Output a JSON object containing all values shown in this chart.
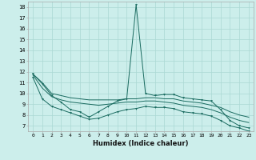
{
  "xlabel": "Humidex (Indice chaleur)",
  "xlim": [
    -0.5,
    23.5
  ],
  "ylim": [
    6.5,
    18.5
  ],
  "yticks": [
    7,
    8,
    9,
    10,
    11,
    12,
    13,
    14,
    15,
    16,
    17,
    18
  ],
  "xticks": [
    0,
    1,
    2,
    3,
    4,
    5,
    6,
    7,
    8,
    9,
    10,
    11,
    12,
    13,
    14,
    15,
    16,
    17,
    18,
    19,
    20,
    21,
    22,
    23
  ],
  "bg_color": "#cceeeb",
  "line_color": "#1a6b60",
  "grid_color": "#aad8d4",
  "s_jagged": [
    11.8,
    10.9,
    9.8,
    9.2,
    8.5,
    8.3,
    7.8,
    8.3,
    8.8,
    9.3,
    9.5,
    18.2,
    10.0,
    9.8,
    9.9,
    9.9,
    9.6,
    9.5,
    9.4,
    9.3,
    8.5,
    7.5,
    7.0,
    6.8
  ],
  "s_upper": [
    11.8,
    11.0,
    10.0,
    9.8,
    9.6,
    9.5,
    9.4,
    9.4,
    9.4,
    9.4,
    9.5,
    9.5,
    9.6,
    9.6,
    9.5,
    9.5,
    9.3,
    9.2,
    9.1,
    8.9,
    8.7,
    8.3,
    8.0,
    7.8
  ],
  "s_mid": [
    11.7,
    10.5,
    9.7,
    9.4,
    9.2,
    9.1,
    9.0,
    8.9,
    9.0,
    9.1,
    9.2,
    9.2,
    9.3,
    9.3,
    9.2,
    9.1,
    8.9,
    8.8,
    8.7,
    8.5,
    8.2,
    7.8,
    7.5,
    7.3
  ],
  "s_lower": [
    11.5,
    9.5,
    8.8,
    8.5,
    8.2,
    7.9,
    7.6,
    7.7,
    8.0,
    8.3,
    8.5,
    8.6,
    8.8,
    8.7,
    8.7,
    8.6,
    8.3,
    8.2,
    8.1,
    7.9,
    7.5,
    7.0,
    6.8,
    6.5
  ]
}
